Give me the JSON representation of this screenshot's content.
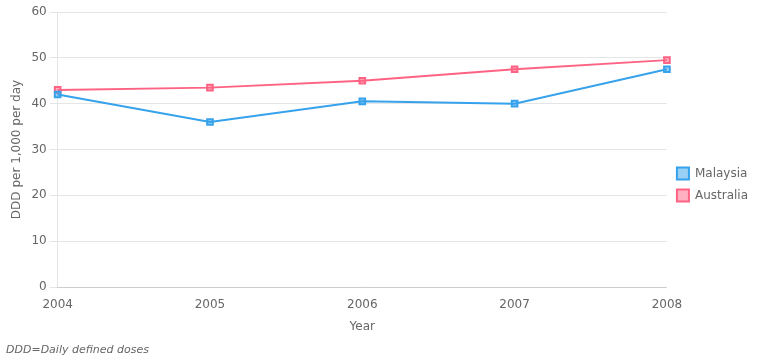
{
  "chart_data": {
    "type": "line",
    "x": [
      2004,
      2005,
      2006,
      2007,
      2008
    ],
    "series": [
      {
        "name": "Malaysia",
        "values": [
          42,
          36,
          40.5,
          40,
          47.5
        ]
      },
      {
        "name": "Australia",
        "values": [
          43,
          43.5,
          45,
          47.5,
          49.5
        ]
      }
    ],
    "xlabel": "Year",
    "ylabel": "DDD per 1,000 per day",
    "xlim": [
      2004,
      2008
    ],
    "xticks": [
      2004,
      2005,
      2006,
      2007,
      2008
    ],
    "ylim": [
      0,
      60
    ],
    "yticks": [
      0,
      10,
      20,
      30,
      40,
      50,
      60
    ],
    "annotations": [
      "DDD=Daily defined doses"
    ],
    "marker": "square",
    "grid": "y",
    "legend": "right"
  }
}
